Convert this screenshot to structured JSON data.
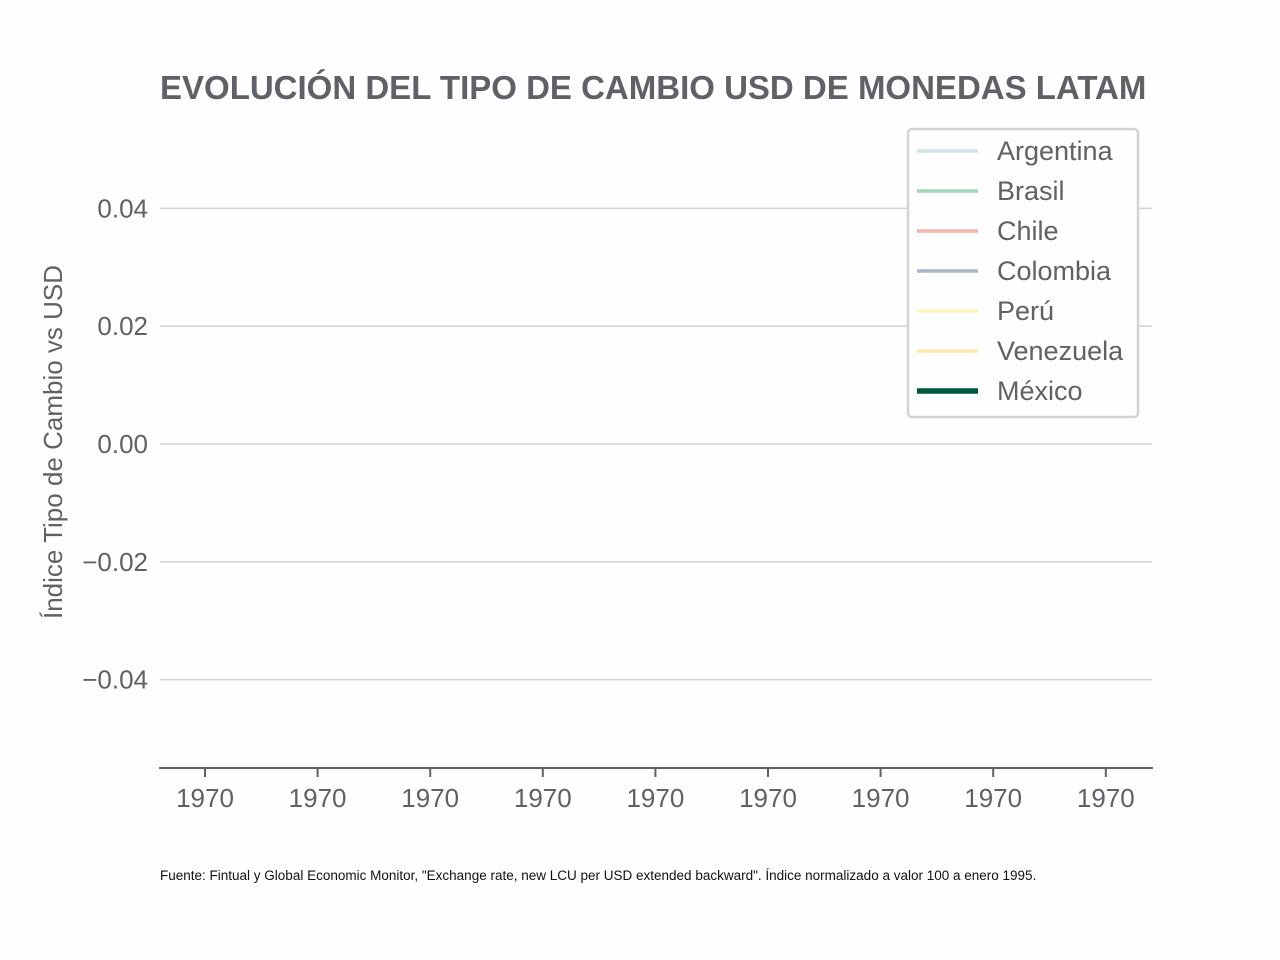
{
  "chart_data": {
    "type": "line",
    "title": "EVOLUCIÓN DEL TIPO DE CAMBIO USD DE MONEDAS LATAM",
    "ylabel": "Índice Tipo de Cambio vs USD",
    "xlabel": "",
    "ylim": [
      -0.055,
      0.055
    ],
    "y_ticks": [
      -0.04,
      -0.02,
      0.0,
      0.02,
      0.04
    ],
    "y_tick_labels": [
      "−0.04",
      "−0.02",
      "0.00",
      "0.02",
      "0.04"
    ],
    "x_tick_labels": [
      "1970",
      "1970",
      "1970",
      "1970",
      "1970",
      "1970",
      "1970",
      "1970",
      "1970"
    ],
    "grid": "horizontal",
    "legend_position": "top-right",
    "series": [
      {
        "name": "Argentina",
        "color": "#d2e3ea",
        "values": []
      },
      {
        "name": "Brasil",
        "color": "#a3d9b8",
        "values": []
      },
      {
        "name": "Chile",
        "color": "#efb6b0",
        "values": []
      },
      {
        "name": "Colombia",
        "color": "#aab7c9",
        "values": []
      },
      {
        "name": "Perú",
        "color": "#fcf3bd",
        "values": []
      },
      {
        "name": "Venezuela",
        "color": "#fcebaa",
        "values": []
      },
      {
        "name": "México",
        "color": "#00573f",
        "values": [],
        "emphasized": true
      }
    ]
  },
  "note": "Fuente: Fintual y Global Economic Monitor, \"Exchange rate, new LCU per USD extended backward\". Índice normalizado a valor 100 a enero 1995."
}
